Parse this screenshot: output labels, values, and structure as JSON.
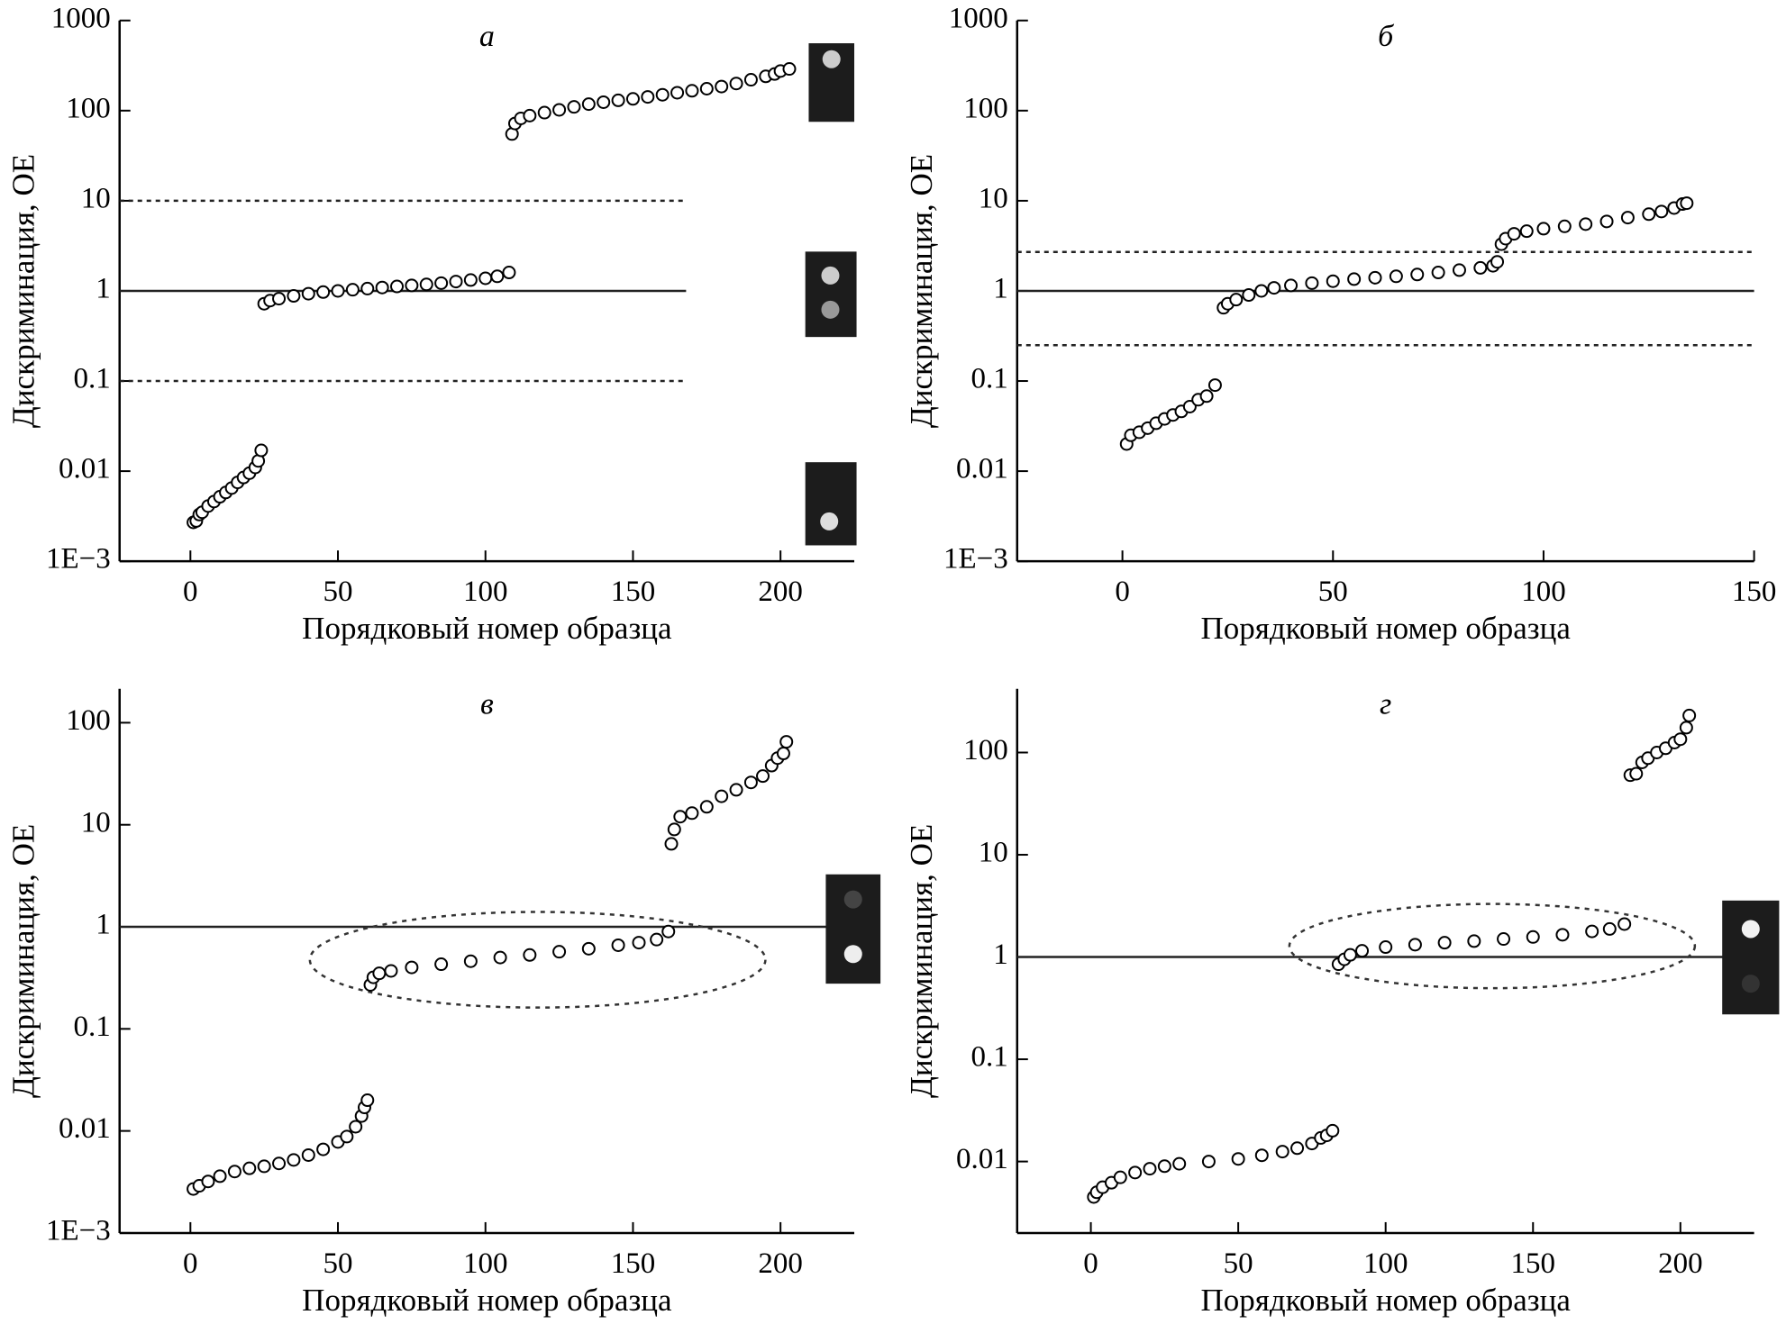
{
  "chart_data": [
    {
      "type": "scatter",
      "title": "а",
      "x_label": "Порядковый номер образца",
      "y_label": "Дискриминация, ОЕ",
      "log_y": true,
      "xlim": [
        -24,
        225
      ],
      "ylim": [
        0.001,
        1000
      ],
      "xticks": [
        0,
        50,
        100,
        150,
        200
      ],
      "yticks": [
        {
          "value": 0.001,
          "label": "1E−3"
        },
        0.01,
        0.1,
        1,
        10,
        100,
        1000
      ],
      "hlines": [
        {
          "value": 1,
          "style": "solid",
          "x_end": 168
        },
        {
          "value": 10,
          "style": "dotted",
          "x_end": 168
        },
        {
          "value": 0.1,
          "style": "dotted",
          "x_end": 168
        }
      ],
      "series": [
        {
          "color": "#000000",
          "x": [
            1,
            2,
            3,
            4,
            6,
            8,
            10,
            12,
            14,
            16,
            18,
            20,
            22,
            23,
            24,
            25,
            27,
            30,
            35,
            40,
            45,
            50,
            55,
            60,
            65,
            70,
            75,
            80,
            85,
            90,
            95,
            100,
            104,
            108,
            109,
            110,
            112,
            115,
            120,
            125,
            130,
            135,
            140,
            145,
            150,
            155,
            160,
            165,
            170,
            175,
            180,
            185,
            190,
            195,
            198,
            200,
            203
          ],
          "values": [
            0.0027,
            0.0028,
            0.0033,
            0.0035,
            0.0041,
            0.0046,
            0.0052,
            0.0058,
            0.0065,
            0.0075,
            0.0085,
            0.0095,
            0.011,
            0.013,
            0.017,
            0.72,
            0.78,
            0.82,
            0.88,
            0.93,
            0.97,
            1.0,
            1.03,
            1.06,
            1.09,
            1.12,
            1.15,
            1.18,
            1.22,
            1.27,
            1.32,
            1.38,
            1.45,
            1.6,
            55,
            72,
            82,
            88,
            95,
            102,
            110,
            118,
            124,
            130,
            135,
            142,
            150,
            158,
            166,
            175,
            185,
            200,
            220,
            240,
            255,
            275,
            290
          ]
        }
      ]
    },
    {
      "type": "scatter",
      "title": "б",
      "x_label": "Порядковый номер образца",
      "y_label": "Дискриминация, ОЕ",
      "log_y": true,
      "xlim": [
        -25,
        150
      ],
      "ylim": [
        0.001,
        1000
      ],
      "xticks": [
        0,
        50,
        100,
        150
      ],
      "yticks": [
        {
          "value": 0.001,
          "label": "1E−3"
        },
        0.01,
        0.1,
        1,
        10,
        100,
        1000
      ],
      "hlines": [
        {
          "value": 1,
          "style": "solid"
        },
        {
          "value": 2.7,
          "style": "dotted"
        },
        {
          "value": 0.25,
          "style": "dotted"
        }
      ],
      "series": [
        {
          "color": "#000000",
          "x": [
            1,
            2,
            4,
            6,
            8,
            10,
            12,
            14,
            16,
            18,
            20,
            22,
            24,
            25,
            27,
            30,
            33,
            36,
            40,
            45,
            50,
            55,
            60,
            65,
            70,
            75,
            80,
            85,
            88,
            89,
            90,
            91,
            93,
            96,
            100,
            105,
            110,
            115,
            120,
            125,
            128,
            131,
            133,
            134
          ],
          "values": [
            0.02,
            0.025,
            0.027,
            0.03,
            0.034,
            0.038,
            0.042,
            0.046,
            0.052,
            0.062,
            0.068,
            0.09,
            0.65,
            0.72,
            0.8,
            0.9,
            1.0,
            1.08,
            1.15,
            1.22,
            1.28,
            1.35,
            1.4,
            1.45,
            1.52,
            1.6,
            1.7,
            1.8,
            1.9,
            2.1,
            3.3,
            3.8,
            4.3,
            4.6,
            4.9,
            5.2,
            5.5,
            5.9,
            6.5,
            7.1,
            7.6,
            8.3,
            9.2,
            9.4
          ]
        }
      ]
    },
    {
      "type": "scatter",
      "title": "в",
      "x_label": "Порядковый номер образца",
      "y_label": "Дискриминация, ОЕ",
      "log_y": true,
      "xlim": [
        -24,
        225
      ],
      "ylim": [
        0.001,
        215
      ],
      "xticks": [
        0,
        50,
        100,
        150,
        200
      ],
      "yticks": [
        {
          "value": 0.001,
          "label": "1E−3"
        },
        0.01,
        0.1,
        1,
        10,
        100
      ],
      "hlines": [
        {
          "value": 1,
          "style": "solid"
        }
      ],
      "series": [
        {
          "color": "#000000",
          "x": [
            1,
            3,
            6,
            10,
            15,
            20,
            25,
            30,
            35,
            40,
            45,
            50,
            53,
            56,
            58,
            59,
            60,
            61,
            62,
            64,
            68,
            75,
            85,
            95,
            105,
            115,
            125,
            135,
            145,
            152,
            158,
            162,
            163,
            164,
            166,
            170,
            175,
            180,
            185,
            190,
            194,
            197,
            199,
            201,
            202
          ],
          "values": [
            0.0027,
            0.0029,
            0.0032,
            0.0036,
            0.004,
            0.0043,
            0.0045,
            0.0048,
            0.0052,
            0.0058,
            0.0066,
            0.0078,
            0.0088,
            0.011,
            0.014,
            0.017,
            0.02,
            0.27,
            0.32,
            0.35,
            0.37,
            0.4,
            0.43,
            0.46,
            0.5,
            0.53,
            0.57,
            0.61,
            0.66,
            0.7,
            0.75,
            0.9,
            6.5,
            9,
            12,
            13,
            15,
            19,
            22,
            26,
            30,
            38,
            45,
            50,
            65
          ]
        }
      ]
    },
    {
      "type": "scatter",
      "title": "г",
      "x_label": "Порядковый номер образца",
      "y_label": "Дискриминация, ОЕ",
      "log_y": true,
      "xlim": [
        -25,
        225
      ],
      "ylim": [
        0.002,
        420
      ],
      "xticks": [
        0,
        50,
        100,
        150,
        200
      ],
      "yticks": [
        0.01,
        0.1,
        1,
        10,
        100
      ],
      "hlines": [
        {
          "value": 1,
          "style": "solid"
        }
      ],
      "series": [
        {
          "color": "#000000",
          "x": [
            1,
            2,
            4,
            7,
            10,
            15,
            20,
            25,
            30,
            40,
            50,
            58,
            65,
            70,
            75,
            78,
            80,
            82,
            84,
            86,
            88,
            92,
            100,
            110,
            120,
            130,
            140,
            150,
            160,
            170,
            176,
            181,
            183,
            185,
            187,
            189,
            192,
            195,
            198,
            200,
            202,
            203
          ],
          "values": [
            0.0045,
            0.005,
            0.0056,
            0.0062,
            0.007,
            0.0078,
            0.0085,
            0.009,
            0.0095,
            0.01,
            0.0106,
            0.0115,
            0.0125,
            0.0135,
            0.015,
            0.017,
            0.018,
            0.02,
            0.85,
            0.95,
            1.05,
            1.15,
            1.25,
            1.32,
            1.38,
            1.43,
            1.5,
            1.57,
            1.65,
            1.78,
            1.88,
            2.1,
            60,
            62,
            80,
            88,
            100,
            110,
            125,
            135,
            175,
            230
          ]
        }
      ]
    }
  ]
}
